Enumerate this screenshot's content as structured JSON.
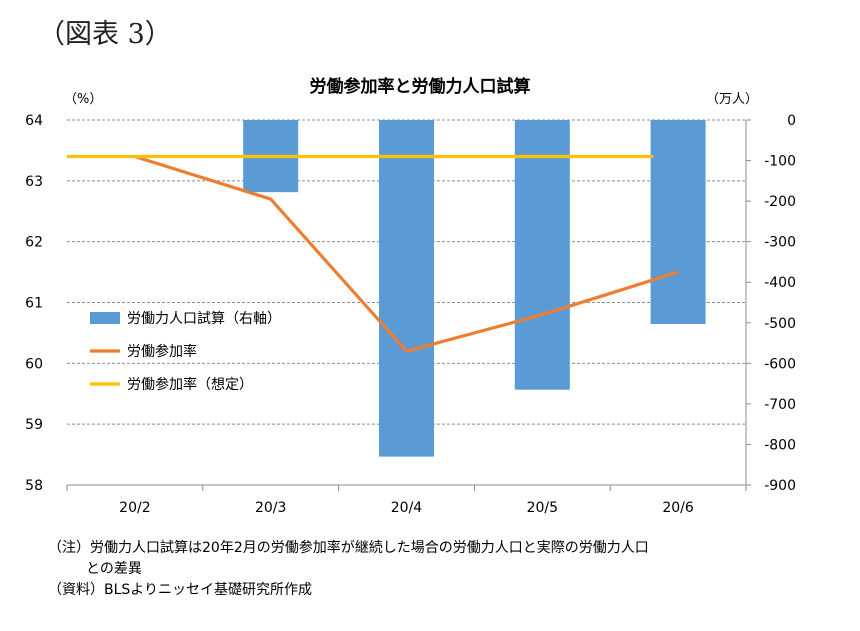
{
  "figure_label": "（図表 3）",
  "chart_data": {
    "type": "bar",
    "title": "労働参加率と労働力人口試算",
    "categories": [
      "20/2",
      "20/3",
      "20/4",
      "20/5",
      "20/6"
    ],
    "y_left": {
      "unit": "（%）",
      "ylim": [
        58,
        64
      ],
      "ticks": [
        "64",
        "63",
        "62",
        "61",
        "60",
        "59",
        "58"
      ]
    },
    "y_right": {
      "unit": "（万人）",
      "ylim": [
        -900,
        0
      ],
      "ticks": [
        "0",
        "-100",
        "-200",
        "-300",
        "-400",
        "-500",
        "-600",
        "-700",
        "-800",
        "-900"
      ]
    },
    "series": [
      {
        "name": "労働力人口試算（右軸）",
        "type": "bar",
        "axis": "right",
        "color": "#5B9BD5",
        "values": [
          0,
          -178,
          -830,
          -665,
          -503
        ]
      },
      {
        "name": "労働参加率",
        "type": "line",
        "axis": "left",
        "color": "#ED7D31",
        "values": [
          63.4,
          62.7,
          60.2,
          60.8,
          61.5
        ]
      },
      {
        "name": "労働参加率（想定）",
        "type": "line",
        "axis": "left",
        "color": "#FFC000",
        "values": [
          63.4,
          63.4,
          63.4,
          63.4,
          63.4
        ]
      }
    ],
    "grid": true,
    "legend": "left-middle"
  },
  "notes": {
    "line1": "（注）労働力人口試算は20年2月の労働参加率が継続した場合の労働力人口と実際の労働力人口",
    "line2": "との差異",
    "line3": "（資料）BLSよりニッセイ基礎研究所作成"
  }
}
